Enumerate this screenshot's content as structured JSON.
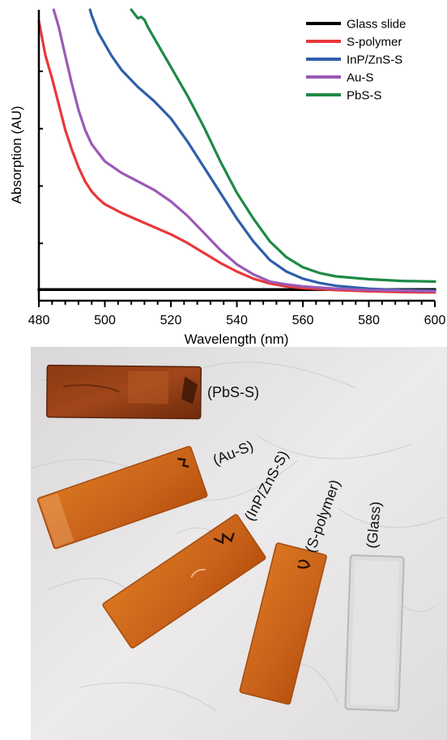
{
  "chart_data": {
    "type": "line",
    "title": "",
    "xlabel": "Wavelength (nm)",
    "ylabel": "Absorption (AU)",
    "xlim": [
      480,
      600
    ],
    "ylim": [
      0,
      1
    ],
    "x_ticks": [
      480,
      500,
      520,
      540,
      560,
      580,
      600
    ],
    "y_ticks_labeled": false,
    "grid": false,
    "legend_position": "top-right",
    "series": [
      {
        "name": "Glass slide",
        "color": "#000000",
        "x": [
          480,
          600
        ],
        "y": [
          0.022,
          0.022
        ]
      },
      {
        "name": "S-polymer",
        "color": "#e8383a",
        "x": [
          480,
          482,
          484,
          486,
          488,
          490,
          492,
          494,
          496,
          498,
          500,
          505,
          510,
          515,
          520,
          525,
          530,
          535,
          540,
          545,
          550,
          555,
          560,
          570,
          580,
          590,
          600
        ],
        "y": [
          0.96,
          0.84,
          0.76,
          0.67,
          0.58,
          0.51,
          0.45,
          0.4,
          0.365,
          0.34,
          0.32,
          0.29,
          0.265,
          0.24,
          0.215,
          0.185,
          0.15,
          0.115,
          0.085,
          0.06,
          0.043,
          0.033,
          0.027,
          0.02,
          0.016,
          0.013,
          0.012
        ]
      },
      {
        "name": "InP/ZnS-S",
        "color": "#2f5eab",
        "x": [
          495.5,
          496,
          497,
          498,
          500,
          502,
          505,
          510,
          515,
          520,
          525,
          530,
          535,
          540,
          545,
          550,
          555,
          560,
          565,
          570,
          580,
          590,
          600
        ],
        "y": [
          1.0,
          0.98,
          0.95,
          0.92,
          0.88,
          0.84,
          0.79,
          0.73,
          0.68,
          0.62,
          0.54,
          0.45,
          0.36,
          0.27,
          0.19,
          0.125,
          0.085,
          0.06,
          0.045,
          0.035,
          0.025,
          0.02,
          0.018
        ]
      },
      {
        "name": "Au-S",
        "color": "#9b59b6",
        "x": [
          484.5,
          485,
          486,
          488,
          490,
          492,
          494,
          496,
          498,
          500,
          505,
          510,
          515,
          520,
          525,
          530,
          535,
          540,
          545,
          550,
          555,
          560,
          570,
          580,
          590,
          600
        ],
        "y": [
          1.0,
          0.98,
          0.94,
          0.84,
          0.74,
          0.65,
          0.58,
          0.53,
          0.5,
          0.47,
          0.43,
          0.4,
          0.37,
          0.33,
          0.28,
          0.22,
          0.16,
          0.11,
          0.075,
          0.05,
          0.04,
          0.033,
          0.025,
          0.02,
          0.018,
          0.016
        ]
      },
      {
        "name": "PbS-S",
        "color": "#1e8a45",
        "x": [
          508,
          509,
          510,
          511,
          512,
          513,
          515,
          520,
          525,
          530,
          535,
          540,
          545,
          550,
          555,
          560,
          565,
          570,
          580,
          590,
          600
        ],
        "y": [
          1.0,
          0.985,
          0.97,
          0.975,
          0.965,
          0.94,
          0.9,
          0.8,
          0.7,
          0.59,
          0.47,
          0.36,
          0.27,
          0.19,
          0.135,
          0.1,
          0.08,
          0.068,
          0.058,
          0.052,
          0.05
        ]
      }
    ]
  },
  "photo": {
    "sample_labels": [
      "(PbS-S)",
      "(Au-S)",
      "(InP/ZnS-S)",
      "(S-polymer)",
      "(Glass)"
    ],
    "colors": {
      "cloth": "#e6e4e4",
      "film": "#cf6a1a",
      "film_edge": "#b4520e",
      "glass": "#dcdcdc"
    }
  }
}
